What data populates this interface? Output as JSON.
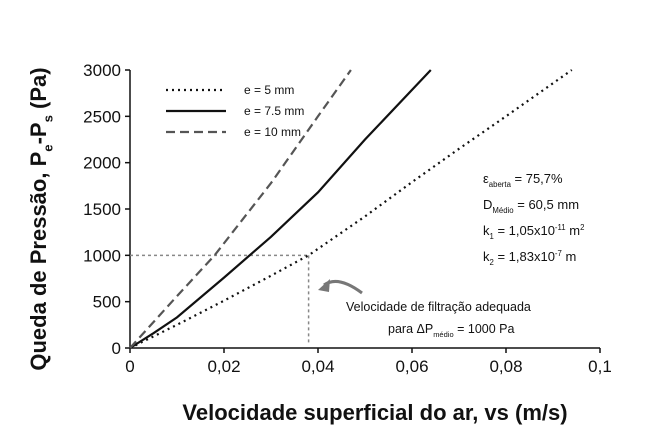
{
  "chart_data": {
    "type": "line",
    "x_label": "Velocidade superficial do ar, vs (m/s)",
    "y_label": [
      "Queda de Pressão, P",
      {
        "sub": "e"
      },
      "-P",
      {
        "sub": "s"
      },
      " (Pa)"
    ],
    "xlim": [
      0,
      0.1
    ],
    "ylim": [
      0,
      3000
    ],
    "xticks": [
      {
        "value": 0,
        "label": "0"
      },
      {
        "value": 0.02,
        "label": "0,02"
      },
      {
        "value": 0.04,
        "label": "0,04"
      },
      {
        "value": 0.06,
        "label": "0,06"
      },
      {
        "value": 0.08,
        "label": "0,08"
      },
      {
        "value": 0.1,
        "label": "0,1"
      }
    ],
    "yticks": [
      0,
      500,
      1000,
      1500,
      2000,
      2500,
      3000
    ],
    "legend": "top-left",
    "series": [
      {
        "name": "e = 5 mm",
        "color": "#111111",
        "dash": "dotted",
        "x": [
          0,
          0.01,
          0.02,
          0.03,
          0.038,
          0.05,
          0.06,
          0.07,
          0.08,
          0.094
        ],
        "values": [
          0,
          250,
          510,
          780,
          1000,
          1420,
          1790,
          2150,
          2500,
          3000
        ]
      },
      {
        "name": "e = 7.5 mm",
        "color": "#111111",
        "dash": "solid",
        "x": [
          0,
          0.005,
          0.01,
          0.02,
          0.03,
          0.04,
          0.05,
          0.064
        ],
        "values": [
          0,
          160,
          330,
          760,
          1200,
          1680,
          2250,
          3000
        ]
      },
      {
        "name": "e = 10 mm",
        "color": "#555555",
        "dash": "dashed",
        "x": [
          0,
          0.01,
          0.018,
          0.03,
          0.04,
          0.047
        ],
        "values": [
          0,
          560,
          1000,
          1780,
          2500,
          3000
        ]
      }
    ],
    "reference": {
      "x": 0.038,
      "y": 1000
    },
    "callout": [
      "Velocidade de filtração adequada",
      [
        "para ΔP",
        {
          "sub": "médio"
        },
        " = 1000 Pa"
      ]
    ],
    "annotations": [
      [
        "ε",
        {
          "sub": "aberta"
        },
        " = 75,7%"
      ],
      [
        "D",
        {
          "sub": "Médio"
        },
        " = 60,5 mm"
      ],
      [
        "k",
        {
          "sub": "1"
        },
        " = 1,05x10",
        {
          "sup": "-11"
        },
        " m",
        {
          "sup": "2"
        }
      ],
      [
        "k",
        {
          "sub": "2"
        },
        " = 1,83x10",
        {
          "sup": "-7"
        },
        " m"
      ]
    ]
  }
}
